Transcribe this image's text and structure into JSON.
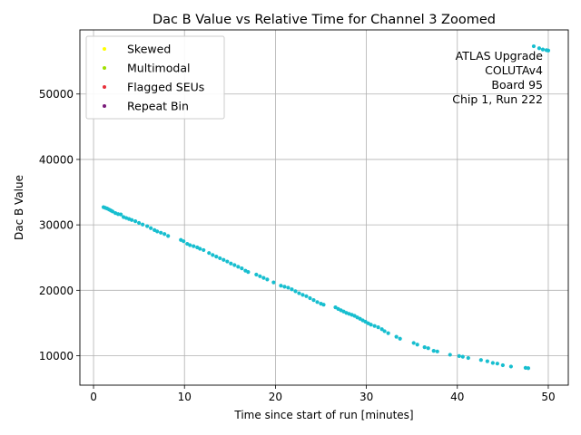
{
  "chart_data": {
    "type": "scatter",
    "title": "Dac B Value vs Relative Time for Channel 3 Zoomed",
    "xlabel": "Time since start of run [minutes]",
    "ylabel": "Dac B Value",
    "xlim": [
      -1.5,
      52.2
    ],
    "ylim": [
      5500,
      59800
    ],
    "xticks": [
      0,
      10,
      20,
      30,
      40,
      50
    ],
    "yticks": [
      10000,
      20000,
      30000,
      40000,
      50000
    ],
    "grid": true,
    "legend_position": "top-left",
    "legend": [
      {
        "name": "Skewed",
        "color": "#ffff00"
      },
      {
        "name": "Multimodal",
        "color": "#a0e000"
      },
      {
        "name": "Flagged SEUs",
        "color": "#e8303a"
      },
      {
        "name": "Repeat Bin",
        "color": "#7a1a7a"
      }
    ],
    "annotation": [
      "ATLAS Upgrade",
      "COLUTAv4",
      "Board 95",
      "Chip 1, Run 222"
    ],
    "series": [
      {
        "color": "#17becf",
        "points": [
          [
            1.1,
            32700
          ],
          [
            1.3,
            32600
          ],
          [
            1.5,
            32500
          ],
          [
            1.7,
            32350
          ],
          [
            1.9,
            32200
          ],
          [
            2.1,
            32050
          ],
          [
            2.4,
            31800
          ],
          [
            2.7,
            31650
          ],
          [
            3.0,
            31600
          ],
          [
            3.3,
            31200
          ],
          [
            3.6,
            31050
          ],
          [
            3.9,
            30900
          ],
          [
            4.2,
            30750
          ],
          [
            4.6,
            30550
          ],
          [
            5.0,
            30300
          ],
          [
            5.4,
            30050
          ],
          [
            5.9,
            29800
          ],
          [
            6.3,
            29500
          ],
          [
            6.7,
            29200
          ],
          [
            7.0,
            29000
          ],
          [
            7.4,
            28800
          ],
          [
            7.8,
            28600
          ],
          [
            8.2,
            28300
          ],
          [
            9.6,
            27700
          ],
          [
            9.9,
            27500
          ],
          [
            10.3,
            27100
          ],
          [
            10.6,
            26900
          ],
          [
            11.0,
            26750
          ],
          [
            11.4,
            26550
          ],
          [
            11.7,
            26350
          ],
          [
            12.1,
            26150
          ],
          [
            12.7,
            25700
          ],
          [
            13.1,
            25400
          ],
          [
            13.5,
            25150
          ],
          [
            13.9,
            24900
          ],
          [
            14.3,
            24650
          ],
          [
            14.7,
            24400
          ],
          [
            15.1,
            24100
          ],
          [
            15.5,
            23850
          ],
          [
            15.9,
            23600
          ],
          [
            16.3,
            23350
          ],
          [
            16.7,
            23000
          ],
          [
            17.0,
            22800
          ],
          [
            17.9,
            22400
          ],
          [
            18.3,
            22150
          ],
          [
            18.7,
            21900
          ],
          [
            19.1,
            21650
          ],
          [
            19.8,
            21200
          ],
          [
            20.6,
            20700
          ],
          [
            21.0,
            20550
          ],
          [
            21.4,
            20400
          ],
          [
            21.8,
            20150
          ],
          [
            22.2,
            19850
          ],
          [
            22.6,
            19550
          ],
          [
            23.0,
            19300
          ],
          [
            23.4,
            19100
          ],
          [
            23.8,
            18800
          ],
          [
            24.2,
            18500
          ],
          [
            24.6,
            18200
          ],
          [
            25.0,
            17950
          ],
          [
            25.3,
            17800
          ],
          [
            26.6,
            17400
          ],
          [
            26.9,
            17150
          ],
          [
            27.2,
            16950
          ],
          [
            27.5,
            16750
          ],
          [
            27.8,
            16550
          ],
          [
            28.1,
            16400
          ],
          [
            28.4,
            16250
          ],
          [
            28.7,
            16100
          ],
          [
            29.0,
            15850
          ],
          [
            29.3,
            15650
          ],
          [
            29.6,
            15400
          ],
          [
            29.9,
            15200
          ],
          [
            30.2,
            14950
          ],
          [
            30.5,
            14750
          ],
          [
            30.9,
            14550
          ],
          [
            31.3,
            14350
          ],
          [
            31.7,
            14050
          ],
          [
            32.0,
            13750
          ],
          [
            32.4,
            13450
          ],
          [
            33.3,
            12900
          ],
          [
            33.7,
            12600
          ],
          [
            35.2,
            11950
          ],
          [
            35.6,
            11700
          ],
          [
            36.4,
            11300
          ],
          [
            36.8,
            11150
          ],
          [
            37.4,
            10750
          ],
          [
            37.8,
            10650
          ],
          [
            39.2,
            10150
          ],
          [
            40.2,
            9950
          ],
          [
            40.6,
            9850
          ],
          [
            41.2,
            9650
          ],
          [
            42.6,
            9350
          ],
          [
            43.3,
            9150
          ],
          [
            43.9,
            8900
          ],
          [
            44.4,
            8800
          ],
          [
            45.0,
            8550
          ],
          [
            45.9,
            8350
          ],
          [
            47.5,
            8150
          ],
          [
            47.8,
            8100
          ],
          [
            48.4,
            57300
          ],
          [
            49.0,
            57000
          ],
          [
            49.4,
            56800
          ],
          [
            49.8,
            56700
          ],
          [
            50.0,
            56650
          ]
        ]
      }
    ]
  }
}
